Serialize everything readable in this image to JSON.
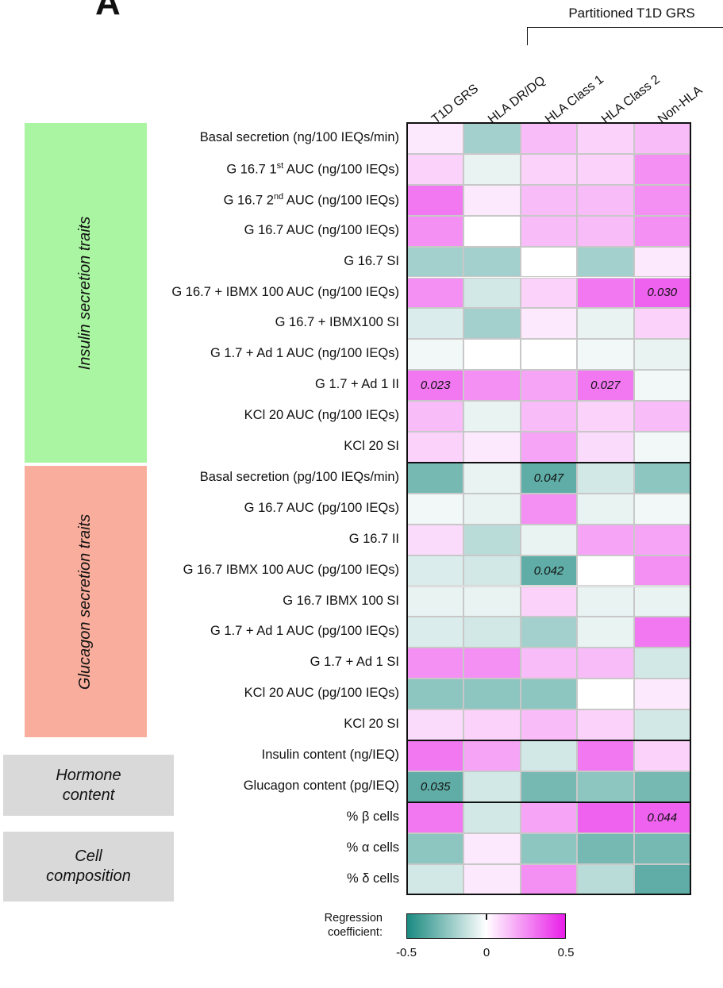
{
  "panel_letter": "A",
  "header_group": "Partitioned T1D GRS",
  "side_boxes": [
    {
      "text": "Insulin secretion traits",
      "color": "#a9f5a1"
    },
    {
      "text": "Glucagon secretion traits",
      "color": "#f9ad9c"
    },
    {
      "line1": "Hormone",
      "line2": "content",
      "color": "#d9d9d9"
    },
    {
      "line1": "Cell",
      "line2": "composition",
      "color": "#d9d9d9"
    }
  ],
  "chart_data": {
    "type": "heatmap",
    "columns": [
      "T1D GRS",
      "HLA DR/DQ",
      "HLA Class 1",
      "HLA Class 2",
      "Non-HLA"
    ],
    "rows": [
      {
        "label": "Basal secretion (ng/100 IEQs/min)",
        "values": [
          0.05,
          -0.2,
          0.15,
          0.1,
          0.15
        ],
        "annotations": [
          "",
          "",
          "",
          "",
          ""
        ]
      },
      {
        "label": "G 16.7 1st AUC (ng/100 IEQs)",
        "values": [
          0.1,
          -0.05,
          0.1,
          0.1,
          0.25
        ],
        "annotations": [
          "",
          "",
          "",
          "",
          ""
        ]
      },
      {
        "label": "G 16.7 2nd AUC (ng/100 IEQs)",
        "values": [
          0.3,
          0.05,
          0.15,
          0.15,
          0.25
        ],
        "annotations": [
          "",
          "",
          "",
          "",
          ""
        ]
      },
      {
        "label": "G 16.7 AUC (ng/100 IEQs)",
        "values": [
          0.25,
          0.0,
          0.15,
          0.15,
          0.25
        ],
        "annotations": [
          "",
          "",
          "",
          "",
          ""
        ]
      },
      {
        "label": "G 16.7 SI",
        "values": [
          -0.2,
          -0.2,
          0.0,
          -0.2,
          0.05
        ],
        "annotations": [
          "",
          "",
          "",
          "",
          ""
        ]
      },
      {
        "label": "G 16.7 + IBMX 100 AUC (ng/100 IEQs)",
        "values": [
          0.25,
          -0.1,
          0.1,
          0.3,
          0.35
        ],
        "annotations": [
          "",
          "",
          "",
          "",
          "0.030"
        ]
      },
      {
        "label": "G 16.7 + IBMX100 SI",
        "values": [
          -0.08,
          -0.2,
          0.05,
          -0.05,
          0.1
        ],
        "annotations": [
          "",
          "",
          "",
          "",
          ""
        ]
      },
      {
        "label": "G 1.7 + Ad 1 AUC (ng/100 IEQs)",
        "values": [
          -0.03,
          0.0,
          0.0,
          -0.03,
          -0.05
        ],
        "annotations": [
          "",
          "",
          "",
          "",
          ""
        ]
      },
      {
        "label": "G 1.7 + Ad 1 II",
        "values": [
          0.3,
          0.25,
          0.2,
          0.3,
          -0.03
        ],
        "annotations": [
          "0.023",
          "",
          "",
          "0.027",
          ""
        ]
      },
      {
        "label": "KCl 20 AUC (ng/100 IEQs)",
        "values": [
          0.15,
          -0.05,
          0.15,
          0.1,
          0.15
        ],
        "annotations": [
          "",
          "",
          "",
          "",
          ""
        ]
      },
      {
        "label": "KCl 20 SI",
        "values": [
          0.1,
          0.05,
          0.2,
          0.08,
          -0.03
        ],
        "annotations": [
          "",
          "",
          "",
          "",
          ""
        ]
      },
      {
        "label": "Basal secretion (pg/100 IEQs/min)",
        "values": [
          -0.3,
          -0.05,
          -0.35,
          -0.1,
          -0.25
        ],
        "annotations": [
          "",
          "",
          "0.047",
          "",
          ""
        ]
      },
      {
        "label": "G 16.7 AUC (pg/100 IEQs)",
        "values": [
          -0.03,
          -0.05,
          0.25,
          -0.05,
          -0.03
        ],
        "annotations": [
          "",
          "",
          "",
          "",
          ""
        ]
      },
      {
        "label": "G 16.7 II",
        "values": [
          0.08,
          -0.15,
          -0.05,
          0.2,
          0.2
        ],
        "annotations": [
          "",
          "",
          "",
          "",
          ""
        ]
      },
      {
        "label": "G 16.7 IBMX 100 AUC (pg/100 IEQs)",
        "values": [
          -0.08,
          -0.1,
          -0.35,
          0.0,
          0.25
        ],
        "annotations": [
          "",
          "",
          "0.042",
          "",
          ""
        ]
      },
      {
        "label": "G 16.7 IBMX 100 SI",
        "values": [
          -0.05,
          -0.05,
          0.1,
          -0.05,
          -0.05
        ],
        "annotations": [
          "",
          "",
          "",
          "",
          ""
        ]
      },
      {
        "label": "G 1.7 + Ad 1 AUC (pg/100 IEQs)",
        "values": [
          -0.08,
          -0.1,
          -0.2,
          -0.05,
          0.3
        ],
        "annotations": [
          "",
          "",
          "",
          "",
          ""
        ]
      },
      {
        "label": "G 1.7 + Ad 1 SI",
        "values": [
          0.25,
          0.25,
          0.15,
          0.15,
          -0.1
        ],
        "annotations": [
          "",
          "",
          "",
          "",
          ""
        ]
      },
      {
        "label": "KCl 20 AUC (pg/100 IEQs)",
        "values": [
          -0.25,
          -0.25,
          -0.25,
          0.0,
          0.05
        ],
        "annotations": [
          "",
          "",
          "",
          "",
          ""
        ]
      },
      {
        "label": "KCl 20 SI",
        "values": [
          0.08,
          0.1,
          0.15,
          0.1,
          -0.1
        ],
        "annotations": [
          "",
          "",
          "",
          "",
          ""
        ]
      },
      {
        "label": "Insulin content (ng/IEQ)",
        "values": [
          0.3,
          0.2,
          -0.1,
          0.3,
          0.1
        ],
        "annotations": [
          "",
          "",
          "",
          "",
          ""
        ]
      },
      {
        "label": "Glucagon content (pg/IEQ)",
        "values": [
          -0.35,
          -0.1,
          -0.3,
          -0.25,
          -0.3
        ],
        "annotations": [
          "0.035",
          "",
          "",
          "",
          ""
        ]
      },
      {
        "label": "% β cells",
        "values": [
          0.3,
          -0.1,
          0.2,
          0.35,
          0.35
        ],
        "annotations": [
          "",
          "",
          "",
          "",
          "0.044"
        ]
      },
      {
        "label": "% α cells",
        "values": [
          -0.25,
          0.05,
          -0.25,
          -0.3,
          -0.3
        ],
        "annotations": [
          "",
          "",
          "",
          "",
          ""
        ]
      },
      {
        "label": "% δ cells",
        "values": [
          -0.1,
          0.05,
          0.25,
          -0.15,
          -0.35
        ],
        "annotations": [
          "",
          "",
          "",
          "",
          ""
        ]
      }
    ],
    "row_groups": [
      {
        "name": "Insulin secretion traits",
        "row_count": 11
      },
      {
        "name": "Glucagon secretion traits",
        "row_count": 9
      },
      {
        "name": "Hormone content",
        "row_count": 2
      },
      {
        "name": "Cell composition",
        "row_count": 3
      }
    ],
    "colorscale": {
      "min": -0.5,
      "mid": 0,
      "max": 0.5,
      "min_color": "#1a8a80",
      "mid_color": "#ffffff",
      "max_color": "#e81ee8"
    },
    "legend": {
      "title_line1": "Regression",
      "title_line2": "coefficient:",
      "ticks": [
        "-0.5",
        "0",
        "0.5"
      ]
    }
  }
}
